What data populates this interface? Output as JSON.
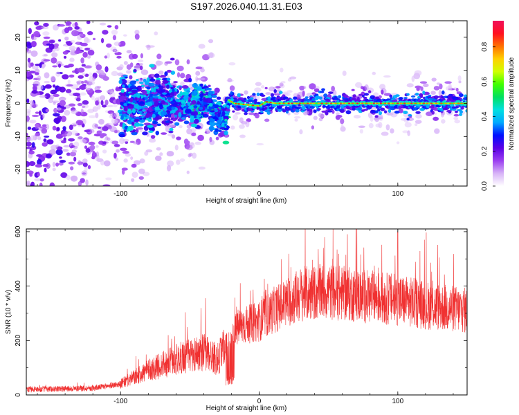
{
  "title": "S197.2026.040.11.31.E03",
  "chart_data": [
    {
      "type": "heatmap",
      "xlabel": "Height of straight line (km)",
      "ylabel": "Frequency (Hz)",
      "xlim": [
        -168,
        150
      ],
      "ylim": [
        -25,
        25
      ],
      "xticks": [
        -100,
        0,
        100
      ],
      "yticks": [
        -20,
        -10,
        0,
        10,
        20
      ],
      "ridge": {
        "description_points_x": [
          -35,
          -24,
          -22,
          -18,
          0,
          5,
          12,
          150
        ],
        "description_points_y": [
          -2.5,
          -5,
          1,
          0,
          -0.8,
          0.5,
          0,
          0
        ]
      },
      "colorbar": {
        "label": "Normalized spectral amplitude",
        "range": [
          0,
          0.95
        ],
        "ticks": [
          0.0,
          0.2,
          0.4,
          0.6,
          0.8
        ],
        "tick_labels": [
          "0.0",
          "0.2",
          "0.4",
          "0.6",
          "0.8"
        ],
        "colors": [
          "#ffffff",
          "#d7b3f7",
          "#9b3ff0",
          "#5a00e6",
          "#0010ff",
          "#00aaff",
          "#00e0e0",
          "#00e060",
          "#40ff00",
          "#d0ff00",
          "#ffd000",
          "#ff7000",
          "#ff1020",
          "#f0105a"
        ]
      }
    },
    {
      "type": "line",
      "xlabel": "Height of straight line (km)",
      "ylabel": "SNR (10 * v/v)",
      "xlim": [
        -168,
        150
      ],
      "ylim": [
        0,
        610
      ],
      "xticks": [
        -100,
        0,
        100
      ],
      "yticks": [
        0,
        200,
        400,
        600
      ],
      "color": "#f03030",
      "envelope_x": [
        -168,
        -120,
        -100,
        -80,
        -60,
        -40,
        -30,
        -15,
        0,
        10,
        20,
        30,
        50,
        80,
        100,
        120,
        150
      ],
      "envelope_y": [
        20,
        25,
        40,
        90,
        130,
        160,
        130,
        250,
        270,
        310,
        340,
        370,
        380,
        360,
        350,
        330,
        310
      ]
    }
  ]
}
